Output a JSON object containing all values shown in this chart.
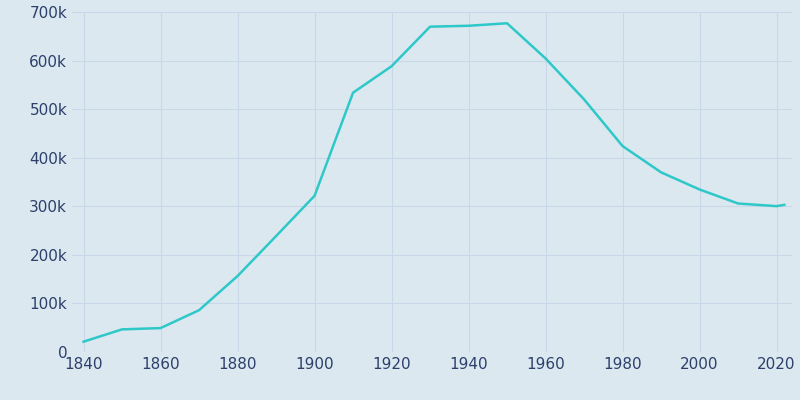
{
  "years": [
    1840,
    1850,
    1860,
    1870,
    1880,
    1890,
    1900,
    1910,
    1920,
    1930,
    1940,
    1950,
    1960,
    1970,
    1980,
    1990,
    2000,
    2010,
    2020,
    2022
  ],
  "population": [
    21262,
    46601,
    49217,
    86076,
    156389,
    238617,
    321616,
    533905,
    588343,
    669817,
    671659,
    676806,
    604332,
    520089,
    423938,
    369879,
    334563,
    305704,
    300286,
    302971
  ],
  "line_color": "#2ec8c8",
  "bg_color": "#dce8f0",
  "plot_bg_color": "#dce8f0",
  "text_color": "#2d3f6b",
  "grid_color": "#c8d8e8",
  "ylim": [
    0,
    700000
  ],
  "xlim": [
    1837,
    2024
  ],
  "xticks": [
    1840,
    1860,
    1880,
    1900,
    1920,
    1940,
    1960,
    1980,
    2000,
    2020
  ],
  "yticks": [
    0,
    100000,
    200000,
    300000,
    400000,
    500000,
    600000,
    700000
  ],
  "line_width": 1.8,
  "tick_label_size": 11
}
